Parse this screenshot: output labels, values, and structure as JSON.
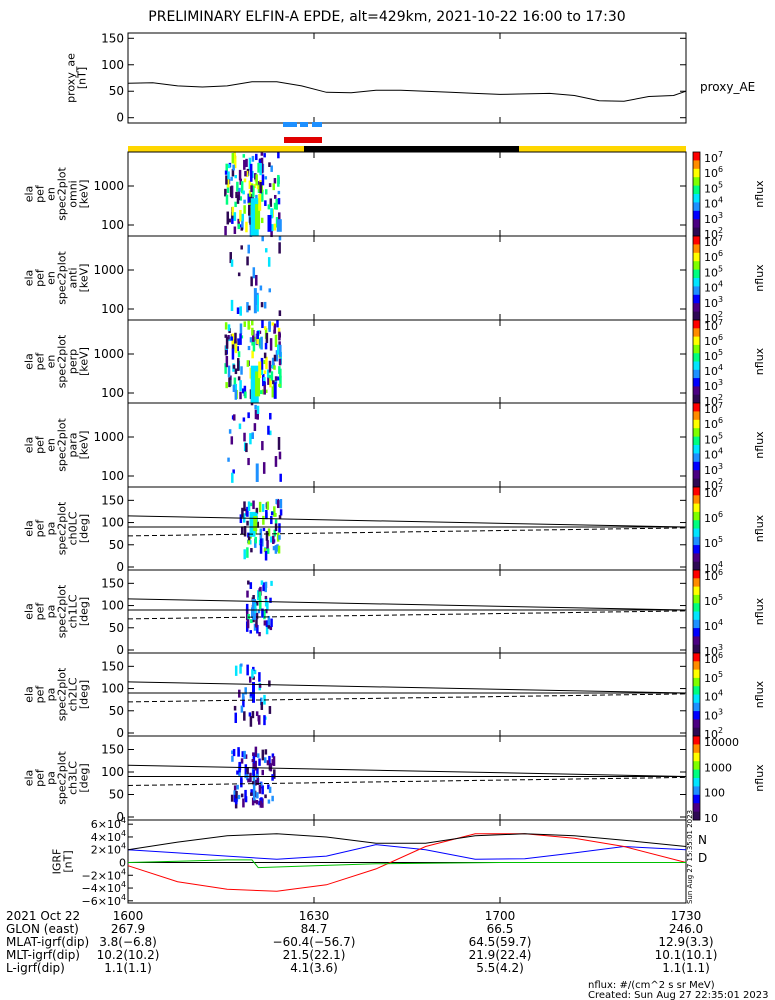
{
  "title": "PRELIMINARY ELFIN-A EPDE, alt=429km, 2021-10-22 16:00 to 17:30",
  "colors": {
    "yellow_bar": "#ffd700",
    "black_bar": "#000000",
    "flag_blue": "#1e90ff",
    "flag_red": "#e00000",
    "igrf_n": "#0000ff",
    "igrf_d": "#ff0000",
    "igrf_green": "#00c000"
  },
  "chart_data": [
    {
      "type": "line",
      "name": "proxy_ae",
      "ylabel": "proxy_ae\n[nT]",
      "series_label": "proxy_AE",
      "ylim": [
        -10,
        160
      ],
      "yticks": [
        "150",
        "100",
        "50",
        "0"
      ],
      "x": [
        0,
        4,
        8,
        12,
        16,
        20,
        24,
        28,
        32,
        36,
        40,
        44,
        48,
        52,
        56,
        60,
        64,
        68,
        72,
        76,
        80,
        84,
        88,
        90
      ],
      "y": [
        65,
        66,
        60,
        58,
        60,
        68,
        68,
        60,
        48,
        47,
        52,
        52,
        50,
        48,
        46,
        44,
        45,
        46,
        42,
        32,
        31,
        40,
        42,
        50
      ]
    },
    {
      "type": "heatmap",
      "name": "ela_pef_en_spec2plot_omni",
      "ylabel": "ela pef en spec2plot omni [keV]",
      "yticks": [
        "1000",
        "100"
      ],
      "zlabel": "nflux",
      "zticks": [
        "10^7",
        "10^6",
        "10^5",
        "10^4",
        "10^3",
        "10^2"
      ]
    },
    {
      "type": "heatmap",
      "name": "ela_pef_en_spec2plot_anti",
      "ylabel": "ela pef en spec2plot anti [keV]",
      "yticks": [
        "1000",
        "100"
      ],
      "zlabel": "nflux",
      "zticks": [
        "10^7",
        "10^6",
        "10^5",
        "10^4",
        "10^3",
        "10^2"
      ]
    },
    {
      "type": "heatmap",
      "name": "ela_pef_en_spec2plot_perp",
      "ylabel": "ela pef en spec2plot perp [keV]",
      "yticks": [
        "1000",
        "100"
      ],
      "zlabel": "nflux",
      "zticks": [
        "10^7",
        "10^6",
        "10^5",
        "10^4",
        "10^3",
        "10^2"
      ]
    },
    {
      "type": "heatmap",
      "name": "ela_pef_en_spec2plot_para",
      "ylabel": "ela pef en spec2plot para [keV]",
      "yticks": [
        "1000",
        "100"
      ],
      "zlabel": "nflux",
      "zticks": [
        "10^7",
        "10^6",
        "10^5",
        "10^4",
        "10^3",
        "10^2"
      ]
    },
    {
      "type": "heatmap",
      "name": "ela_pef_pa_spec2plot_ch0LC",
      "ylabel": "ela pef pa spec2plot ch0LC [deg]",
      "yticks": [
        "150",
        "100",
        "50",
        "0"
      ],
      "zlabel": "nflux",
      "zticks": [
        "10^7",
        "10^6",
        "10^5",
        "10^4"
      ]
    },
    {
      "type": "heatmap",
      "name": "ela_pef_pa_spec2plot_ch1LC",
      "ylabel": "ela pef pa spec2plot ch1LC [deg]",
      "yticks": [
        "150",
        "100",
        "50",
        "0"
      ],
      "zlabel": "nflux",
      "zticks": [
        "10^6",
        "10^5",
        "10^4",
        "10^3"
      ]
    },
    {
      "type": "heatmap",
      "name": "ela_pef_pa_spec2plot_ch2LC",
      "ylabel": "ela pef pa spec2plot ch2LC [deg]",
      "yticks": [
        "150",
        "100",
        "50",
        "0"
      ],
      "zlabel": "nflux",
      "zticks": [
        "10^6",
        "10^5",
        "10^4",
        "10^3",
        "10^2"
      ]
    },
    {
      "type": "heatmap",
      "name": "ela_pef_pa_spec2plot_ch3LC",
      "ylabel": "ela pef pa spec2plot ch3LC [deg]",
      "yticks": [
        "150",
        "100",
        "50",
        "0"
      ],
      "zlabel": "nflux",
      "zticks": [
        "10000",
        "1000",
        "100",
        "10"
      ]
    },
    {
      "type": "line",
      "name": "IGRF",
      "ylabel": "IGRF [nT]",
      "yticks": [
        "6×10^4",
        "4×10^4",
        "2×10^4",
        "0",
        "−2×10^4",
        "−4×10^4",
        "−6×10^4"
      ],
      "ylim": [
        -60000,
        60000
      ],
      "legend": [
        "N",
        "D"
      ],
      "stamp": "Sun Aug 27 15:35:01 2023",
      "series": [
        {
          "name": "N",
          "color": "#0000ff",
          "x": [
            0,
            8,
            16,
            24,
            32,
            40,
            48,
            56,
            64,
            72,
            80,
            90
          ],
          "y": [
            20000,
            15000,
            10000,
            5000,
            10000,
            28000,
            20000,
            5000,
            6000,
            15000,
            25000,
            20000
          ]
        },
        {
          "name": "D",
          "color": "#ff0000",
          "x": [
            0,
            8,
            16,
            24,
            32,
            40,
            48,
            56,
            64,
            72,
            80,
            90
          ],
          "y": [
            -5000,
            -30000,
            -42000,
            -45000,
            -35000,
            -10000,
            25000,
            45000,
            45000,
            38000,
            25000,
            0
          ]
        },
        {
          "name": "",
          "color": "#000000",
          "x": [
            0,
            8,
            16,
            24,
            32,
            40,
            48,
            56,
            64,
            72,
            80,
            90
          ],
          "y": [
            20000,
            32000,
            42000,
            45000,
            40000,
            30000,
            30000,
            42000,
            45000,
            42000,
            35000,
            25000
          ]
        },
        {
          "name": "",
          "color": "#00c000",
          "x": [
            0,
            8,
            16,
            20,
            21,
            30,
            40,
            50,
            60,
            70,
            90
          ],
          "y": [
            0,
            2000,
            4000,
            4000,
            -8000,
            -5000,
            -2000,
            -1000,
            0,
            0,
            0
          ]
        }
      ]
    }
  ],
  "x_axis": {
    "ticks": [
      "1600",
      "1630",
      "1700",
      "1730"
    ],
    "rows": [
      {
        "label": "2021 Oct 22",
        "values": [
          "1600",
          "1630",
          "1700",
          "1730"
        ]
      },
      {
        "label": "GLON (east)",
        "values": [
          "267.9",
          "84.7",
          "66.5",
          "246.0"
        ]
      },
      {
        "label": "MLAT-igrf(dip)",
        "values": [
          "3.8(−6.8)",
          "−60.4(−56.7)",
          "64.5(59.7)",
          "12.9(3.3)"
        ]
      },
      {
        "label": "MLT-igrf(dip)",
        "values": [
          "10.2(10.2)",
          "21.5(22.1)",
          "21.9(22.4)",
          "10.1(10.1)"
        ]
      },
      {
        "label": "L-igrf(dip)",
        "values": [
          "1.1(1.1)",
          "4.1(3.6)",
          "5.5(4.2)",
          "1.1(1.1)"
        ]
      }
    ]
  },
  "footer": {
    "units": "nflux: #/(cm^2 s sr MeV)",
    "created": "Created: Sun Aug 27 22:35:01 2023"
  }
}
